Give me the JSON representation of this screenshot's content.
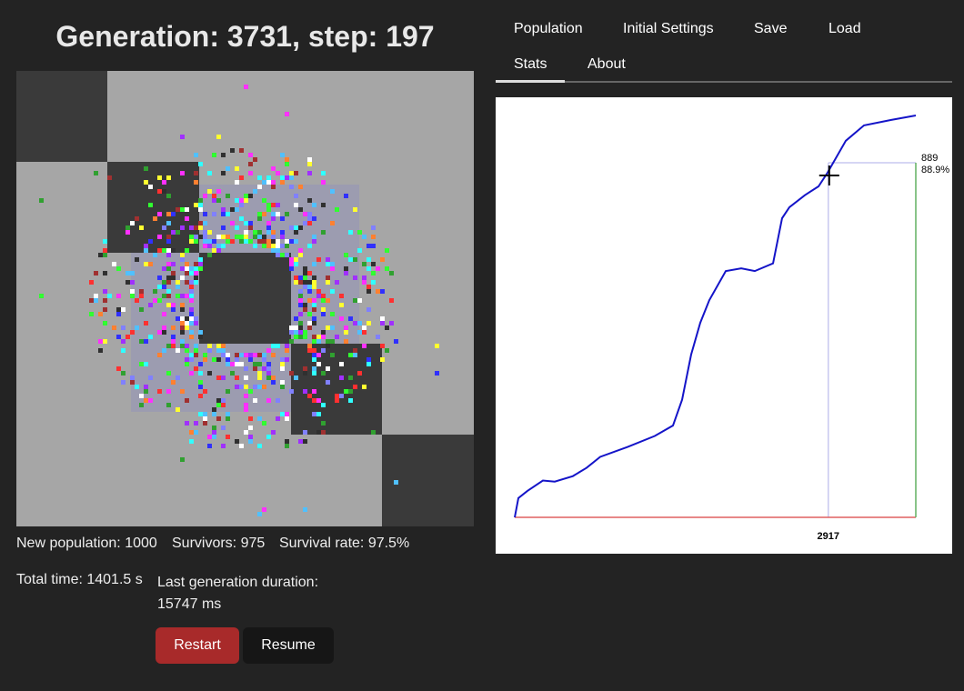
{
  "header": {
    "title": "Generation: 3731, step: 197"
  },
  "tabs": [
    "Population",
    "Initial Settings",
    "Save",
    "Load",
    "Stats",
    "About"
  ],
  "info": {
    "new_population": "New population: 1000",
    "survivors": "Survivors: 975",
    "survival_rate": "Survival rate: 97.5%",
    "total_time": "Total time: 1401.5 s",
    "last_duration": "Last generation duration: 15747 ms"
  },
  "buttons": {
    "restart": "Restart",
    "resume": "Resume"
  },
  "chart_data": {
    "type": "line",
    "x": [
      0,
      34,
      118,
      262,
      372,
      541,
      668,
      795,
      1050,
      1303,
      1472,
      1557,
      1641,
      1726,
      1810,
      1963,
      2107,
      2233,
      2403,
      2487,
      2555,
      2699,
      2826,
      2910,
      3080,
      3249,
      3503,
      3731
    ],
    "series": [
      {
        "color": "#1414c8",
        "values": [
          244,
          279,
          292,
          311,
          309,
          319,
          334,
          354,
          372,
          392,
          411,
          458,
          540,
          598,
          639,
          692,
          697,
          692,
          706,
          788,
          808,
          830,
          846,
          871,
          929,
          957,
          967,
          975
        ]
      }
    ],
    "xlim": [
      0,
      3731
    ],
    "ylim": [
      244,
      975
    ],
    "hover": {
      "x": 2917,
      "y": 889,
      "y_label": "88.9%"
    }
  }
}
